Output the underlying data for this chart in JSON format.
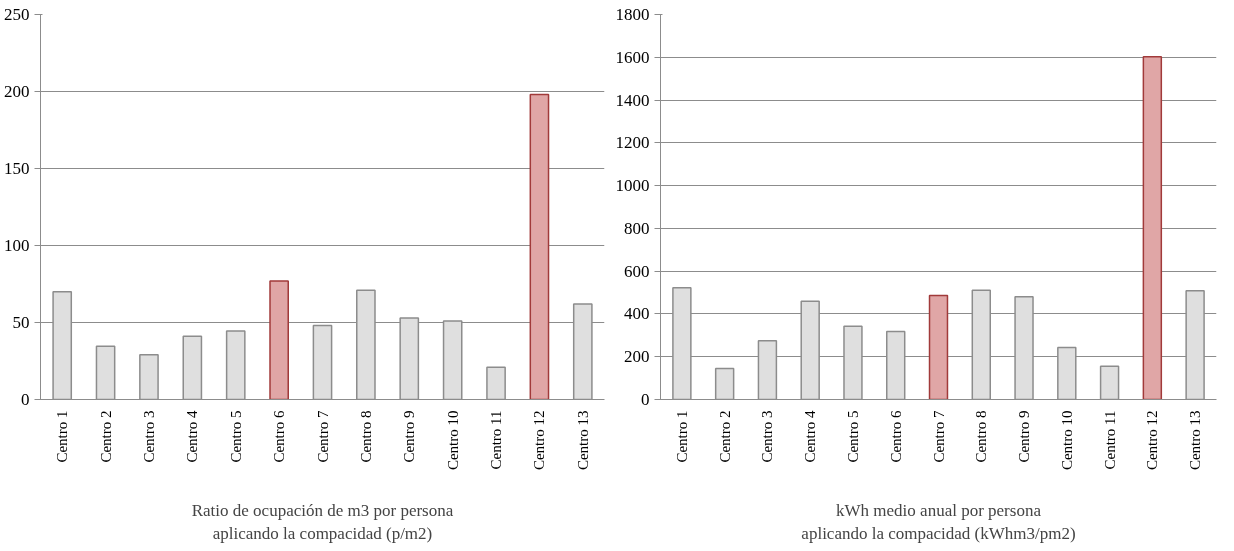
{
  "chart_data": [
    {
      "type": "bar",
      "xlabel": "Ratio de ocupación de m3 por persona aplicando la compacidad (p/m2)",
      "categories": [
        "Centro 1",
        "Centro 2",
        "Centro 3",
        "Centro 4",
        "Centro 5",
        "Centro 6",
        "Centro 7",
        "Centro 8",
        "Centro 9",
        "Centro 10",
        "Centro 11",
        "Centro 12",
        "Centro 13"
      ],
      "values": [
        70,
        34.5,
        29,
        41,
        44.5,
        77,
        48,
        71,
        53,
        51,
        21,
        198,
        62
      ],
      "colors": [
        "#dfdfdf",
        "#dfdfdf",
        "#dfdfdf",
        "#dfdfdf",
        "#dfdfdf",
        "#e0a6a6",
        "#dfdfdf",
        "#dfdfdf",
        "#dfdfdf",
        "#dfdfdf",
        "#dfdfdf",
        "#e0a6a6",
        "#dfdfdf"
      ],
      "ylim": [
        0,
        250
      ],
      "yticks": [
        0,
        50,
        100,
        150,
        200,
        250
      ],
      "grid": "y"
    },
    {
      "type": "bar",
      "xlabel": "kWh medio anual por persona aplicando la compacidad (kWhm3/pm2)",
      "categories": [
        "Centro 1",
        "Centro 2",
        "Centro 3",
        "Centro 4",
        "Centro 5",
        "Centro 6",
        "Centro 7",
        "Centro 8",
        "Centro 9",
        "Centro 10",
        "Centro 11",
        "Centro 12",
        "Centro 13"
      ],
      "values": [
        523,
        145,
        275,
        459,
        343,
        318,
        486,
        511,
        480,
        243,
        155,
        1602,
        509
      ],
      "colors": [
        "#dfdfdf",
        "#dfdfdf",
        "#dfdfdf",
        "#dfdfdf",
        "#dfdfdf",
        "#dfdfdf",
        "#e0a6a6",
        "#dfdfdf",
        "#dfdfdf",
        "#dfdfdf",
        "#dfdfdf",
        "#e0a6a6",
        "#dfdfdf"
      ],
      "ylim": [
        0,
        1800
      ],
      "yticks": [
        0,
        200,
        400,
        600,
        800,
        1000,
        1200,
        1400,
        1600,
        1800
      ],
      "grid": "y"
    }
  ]
}
